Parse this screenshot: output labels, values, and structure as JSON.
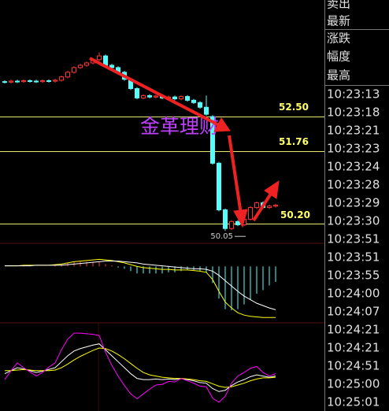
{
  "chart_data": {
    "type": "candlestick",
    "watermark": "金革理财",
    "ylim": [
      49.8,
      55.0
    ],
    "up_color": "#ff3232",
    "down_color": "#54ffff",
    "open": [
      53.25,
      53.24,
      53.26,
      53.25,
      53.27,
      53.26,
      53.25,
      53.27,
      53.26,
      53.28,
      53.35,
      53.45,
      53.55,
      53.6,
      53.65,
      53.72,
      53.8,
      53.6,
      53.55,
      53.45,
      53.3,
      53.1,
      52.9,
      52.95,
      52.92,
      52.94,
      52.9,
      52.92,
      52.88,
      52.93,
      52.85,
      52.8,
      52.7,
      52.5,
      51.5,
      50.5,
      50.1,
      50.25,
      50.18,
      50.3,
      50.55,
      50.65,
      50.55,
      50.58
    ],
    "high": [
      53.28,
      53.29,
      53.29,
      53.3,
      53.3,
      53.29,
      53.3,
      53.3,
      53.31,
      53.38,
      53.48,
      53.58,
      53.63,
      53.68,
      53.75,
      53.88,
      53.83,
      53.63,
      53.58,
      53.48,
      53.33,
      53.13,
      52.98,
      52.98,
      52.97,
      52.97,
      52.95,
      52.95,
      52.96,
      52.96,
      52.88,
      52.83,
      52.95,
      52.53,
      51.53,
      50.53,
      50.28,
      50.28,
      50.33,
      50.58,
      50.68,
      50.68,
      50.61,
      50.63
    ],
    "low": [
      53.21,
      53.21,
      53.22,
      53.22,
      53.23,
      53.22,
      53.22,
      53.23,
      53.23,
      53.25,
      53.32,
      53.42,
      53.52,
      53.57,
      53.62,
      53.69,
      53.57,
      53.52,
      53.42,
      53.27,
      53.07,
      52.87,
      52.87,
      52.89,
      52.89,
      52.87,
      52.87,
      52.85,
      52.85,
      52.82,
      52.77,
      52.67,
      52.52,
      51.47,
      50.47,
      50.05,
      50.07,
      50.15,
      50.15,
      50.27,
      50.52,
      50.52,
      50.52,
      50.55
    ],
    "close": [
      53.24,
      53.26,
      53.25,
      53.27,
      53.26,
      53.25,
      53.27,
      53.26,
      53.28,
      53.35,
      53.45,
      53.55,
      53.6,
      53.65,
      53.72,
      53.8,
      53.6,
      53.55,
      53.45,
      53.3,
      53.1,
      52.9,
      52.95,
      52.92,
      52.94,
      52.9,
      52.92,
      52.88,
      52.93,
      52.85,
      52.8,
      52.7,
      52.55,
      51.5,
      50.5,
      50.1,
      50.25,
      50.18,
      50.3,
      50.55,
      50.65,
      50.55,
      50.58,
      50.6
    ],
    "levels": [
      {
        "value": 52.5,
        "label": "52.50"
      },
      {
        "value": 51.76,
        "label": "51.76"
      },
      {
        "value": 50.2,
        "label": "50.20"
      }
    ],
    "low_marker": {
      "value": 50.05,
      "label": "50.05"
    },
    "macd": {
      "ylim": [
        -0.95,
        0.35
      ],
      "series": [
        {
          "color": "#ffff00",
          "values": [
            0.01,
            0.01,
            0.01,
            0.02,
            0.02,
            0.02,
            0.02,
            0.02,
            0.03,
            0.04,
            0.06,
            0.08,
            0.09,
            0.1,
            0.11,
            0.12,
            0.11,
            0.1,
            0.08,
            0.06,
            0.03,
            0.0,
            -0.02,
            -0.03,
            -0.04,
            -0.05,
            -0.05,
            -0.06,
            -0.06,
            -0.06,
            -0.07,
            -0.08,
            -0.1,
            -0.22,
            -0.42,
            -0.6,
            -0.7,
            -0.78,
            -0.82,
            -0.84,
            -0.85,
            -0.86,
            -0.86,
            -0.86
          ]
        },
        {
          "color": "#ffffff",
          "values": [
            0.01,
            0.01,
            0.01,
            0.01,
            0.01,
            0.02,
            0.02,
            0.02,
            0.02,
            0.02,
            0.03,
            0.04,
            0.05,
            0.06,
            0.07,
            0.08,
            0.09,
            0.09,
            0.09,
            0.08,
            0.07,
            0.06,
            0.04,
            0.03,
            0.02,
            0.01,
            0.0,
            -0.01,
            -0.02,
            -0.03,
            -0.04,
            -0.04,
            -0.05,
            -0.08,
            -0.15,
            -0.24,
            -0.33,
            -0.42,
            -0.5,
            -0.56,
            -0.62,
            -0.66,
            -0.7,
            -0.73
          ]
        }
      ],
      "hist": [
        0,
        0,
        0,
        0.02,
        0.02,
        0,
        0,
        0,
        0.02,
        0.04,
        0.06,
        0.08,
        0.08,
        0.08,
        0.08,
        0.08,
        0.04,
        0.02,
        -0.02,
        -0.04,
        -0.08,
        -0.12,
        -0.12,
        -0.12,
        -0.12,
        -0.12,
        -0.1,
        -0.1,
        -0.08,
        -0.06,
        -0.06,
        -0.08,
        -0.1,
        -0.28,
        -0.54,
        -0.72,
        -0.74,
        -0.72,
        -0.64,
        -0.56,
        -0.46,
        -0.4,
        -0.32,
        -0.26
      ]
    },
    "kdj": {
      "ylim": [
        -20,
        120
      ],
      "series": [
        {
          "color": "#ffffff",
          "values": [
            40,
            45,
            50,
            48,
            45,
            42,
            44,
            47,
            50,
            60,
            70,
            78,
            82,
            85,
            88,
            90,
            80,
            70,
            60,
            50,
            40,
            32,
            30,
            30,
            31,
            30,
            31,
            30,
            32,
            30,
            28,
            25,
            24,
            15,
            10,
            12,
            20,
            26,
            30,
            35,
            38,
            36,
            34,
            36
          ]
        },
        {
          "color": "#ffff00",
          "values": [
            45,
            45,
            46,
            47,
            46,
            45,
            45,
            45,
            46,
            50,
            56,
            63,
            69,
            74,
            79,
            83,
            82,
            78,
            72,
            65,
            57,
            49,
            42,
            38,
            36,
            34,
            33,
            32,
            32,
            31,
            30,
            28,
            27,
            23,
            19,
            17,
            18,
            21,
            24,
            28,
            31,
            33,
            33,
            34
          ]
        },
        {
          "color": "#ff00ff",
          "values": [
            30,
            45,
            58,
            50,
            43,
            36,
            42,
            51,
            58,
            80,
            98,
            108,
            108,
            107,
            106,
            104,
            76,
            54,
            36,
            20,
            6,
            -2,
            6,
            14,
            21,
            22,
            27,
            26,
            32,
            28,
            24,
            19,
            18,
            -1,
            -8,
            2,
            24,
            36,
            42,
            49,
            52,
            42,
            36,
            40
          ]
        }
      ]
    }
  },
  "side_panel": {
    "labels": [
      "卖出",
      "最新",
      "涨跌",
      "幅度",
      "最高"
    ],
    "times": [
      "10:23:13",
      "10:23:18",
      "10:23:21",
      "10:23:23",
      "10:23:24",
      "10:23:28",
      "10:23:29",
      "10:23:30",
      "10:23:51",
      "10:23:51",
      "10:23:55",
      "10:24:00",
      "10:24:07",
      "10:24:21",
      "10:24:21",
      "10:24:51",
      "10:25:00",
      "10:25:01"
    ]
  }
}
